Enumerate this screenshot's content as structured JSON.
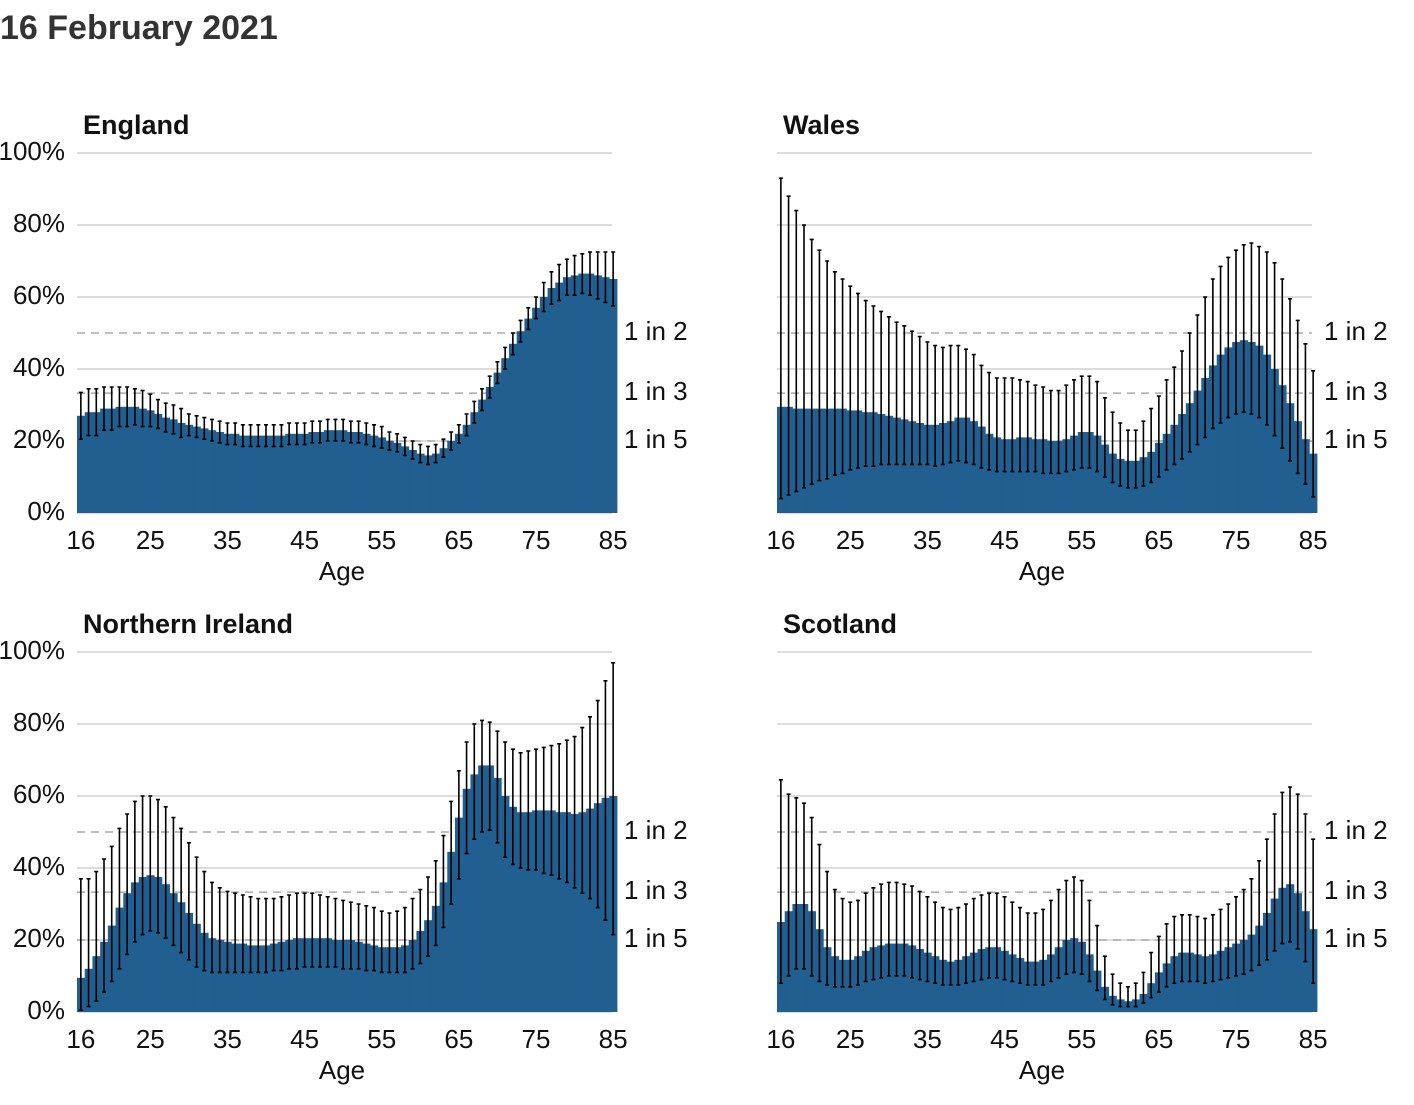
{
  "title": "16 February 2021",
  "chart_data": [
    {
      "type": "bar",
      "title": "England",
      "xlabel": "Age",
      "color": "#215f91",
      "error_color": "#000000",
      "x": [
        16,
        17,
        18,
        19,
        20,
        21,
        22,
        23,
        24,
        25,
        26,
        27,
        28,
        29,
        30,
        31,
        32,
        33,
        34,
        35,
        36,
        37,
        38,
        39,
        40,
        41,
        42,
        43,
        44,
        45,
        46,
        47,
        48,
        49,
        50,
        51,
        52,
        53,
        54,
        55,
        56,
        57,
        58,
        59,
        60,
        61,
        62,
        63,
        64,
        65,
        66,
        67,
        68,
        69,
        70,
        71,
        72,
        73,
        74,
        75,
        76,
        77,
        78,
        79,
        80,
        81,
        82,
        83,
        84,
        85
      ],
      "values": [
        27,
        28,
        28,
        29,
        29,
        29.5,
        29.5,
        29.5,
        29,
        28.5,
        27.5,
        26.5,
        26,
        25,
        24.5,
        24,
        23.5,
        23,
        22.5,
        22,
        22,
        21.5,
        21.5,
        21.5,
        21.5,
        21.5,
        21.5,
        22,
        22,
        22,
        22.5,
        22.5,
        23,
        23,
        23,
        22.5,
        22.5,
        22,
        21.5,
        21,
        20,
        19.5,
        18.5,
        17.5,
        16.5,
        16,
        16.5,
        18,
        20,
        22,
        24.5,
        28,
        31.5,
        35,
        39,
        43,
        47,
        50.5,
        54,
        57,
        60,
        62.5,
        64,
        65.5,
        66,
        66.5,
        66.5,
        66,
        65.5,
        65
      ],
      "lower": [
        20.5,
        21.5,
        21.5,
        23,
        23,
        24,
        24,
        24.5,
        24,
        24,
        23.5,
        22.5,
        22,
        21,
        21.5,
        21,
        20.5,
        20,
        19.5,
        19,
        19,
        18.5,
        18.5,
        18.5,
        18.5,
        18.5,
        18.5,
        19,
        19,
        19,
        19.5,
        19.5,
        20,
        20,
        20,
        19.5,
        19.5,
        19,
        18.5,
        18,
        17.5,
        17,
        16,
        15,
        14,
        13.5,
        14,
        15.5,
        17.5,
        19.5,
        21.5,
        25,
        28.5,
        32,
        36,
        40,
        44,
        47.5,
        51,
        54,
        56,
        58,
        59,
        60.5,
        60.5,
        61,
        60.5,
        59.5,
        58.5,
        57.5
      ],
      "upper": [
        33.5,
        34.5,
        34.5,
        35,
        35,
        35,
        35,
        34.5,
        34,
        33,
        31.5,
        30.5,
        30,
        29,
        27.5,
        27,
        26.5,
        26,
        25.5,
        25,
        25,
        24.5,
        24.5,
        24.5,
        24.5,
        24.5,
        24.5,
        25,
        25,
        25,
        25.5,
        25.5,
        26,
        26,
        26,
        25.5,
        25.5,
        25,
        24.5,
        24,
        22.5,
        22,
        21,
        20,
        19,
        18.5,
        19,
        20.5,
        22.5,
        24.5,
        27.5,
        31,
        34.5,
        38,
        42,
        46,
        50,
        53.5,
        57,
        60,
        64,
        67,
        69,
        70.5,
        71.5,
        72,
        72.5,
        72.5,
        72.5,
        72.5
      ],
      "xlim": [
        15.5,
        85.5
      ],
      "xticks": [
        16,
        25,
        35,
        45,
        55,
        65,
        75,
        85
      ],
      "ylim": [
        0,
        100
      ],
      "yticks": [
        {
          "value": 0,
          "label": "0%"
        },
        {
          "value": 20,
          "label": "20%"
        },
        {
          "value": 40,
          "label": "40%"
        },
        {
          "value": 60,
          "label": "60%"
        },
        {
          "value": 80,
          "label": "80%"
        },
        {
          "value": 100,
          "label": "100%"
        }
      ],
      "reference_lines": [
        {
          "value": 50,
          "label": "1 in 2"
        },
        {
          "value": 33.3,
          "label": "1 in 3"
        },
        {
          "value": 20,
          "label": "1 in 5"
        }
      ],
      "grid": true
    },
    {
      "type": "bar",
      "title": "Wales",
      "xlabel": "Age",
      "color": "#215f91",
      "error_color": "#000000",
      "x": [
        16,
        17,
        18,
        19,
        20,
        21,
        22,
        23,
        24,
        25,
        26,
        27,
        28,
        29,
        30,
        31,
        32,
        33,
        34,
        35,
        36,
        37,
        38,
        39,
        40,
        41,
        42,
        43,
        44,
        45,
        46,
        47,
        48,
        49,
        50,
        51,
        52,
        53,
        54,
        55,
        56,
        57,
        58,
        59,
        60,
        61,
        62,
        63,
        64,
        65,
        66,
        67,
        68,
        69,
        70,
        71,
        72,
        73,
        74,
        75,
        76,
        77,
        78,
        79,
        80,
        81,
        82,
        83,
        84,
        85
      ],
      "values": [
        29.5,
        29.5,
        29,
        29,
        29,
        29,
        29,
        29,
        29,
        28.5,
        28.5,
        28,
        28,
        27.5,
        27,
        26.5,
        26,
        25.5,
        25,
        24.5,
        24.5,
        25,
        25.5,
        26.5,
        26.5,
        25.5,
        24,
        22,
        21,
        20.5,
        20.5,
        21,
        21,
        20.5,
        20.5,
        20,
        20,
        20.5,
        21.5,
        22.5,
        22.5,
        21.5,
        19,
        16.5,
        15,
        14.5,
        14.5,
        15.5,
        17,
        19.5,
        22,
        24.5,
        27.5,
        30.5,
        34,
        37.5,
        41,
        44,
        46,
        47.5,
        48,
        47.5,
        46.5,
        44,
        40,
        35.5,
        30.5,
        25.5,
        20.5,
        16.5
      ],
      "lower": [
        4,
        5,
        6,
        7,
        8,
        9,
        9.5,
        10.5,
        11,
        12,
        12.5,
        13,
        13,
        13.5,
        13.5,
        13.5,
        13.5,
        13.5,
        13.5,
        13.5,
        13,
        13.5,
        14,
        14.5,
        14,
        13.5,
        12.5,
        12,
        11.5,
        11.5,
        11.5,
        11.5,
        11.5,
        11.5,
        11,
        11,
        11,
        11.5,
        12,
        12.5,
        12.5,
        11.5,
        10,
        8.5,
        7.5,
        7,
        7,
        7.5,
        8.5,
        10,
        12,
        13.5,
        15,
        17,
        19,
        21,
        23.5,
        25,
        26.5,
        27.5,
        28,
        27.5,
        26.5,
        24.5,
        21.5,
        18,
        14.5,
        11,
        8,
        4.5
      ],
      "upper": [
        93,
        88,
        84,
        80,
        76,
        73,
        70,
        67,
        65,
        63,
        61,
        59,
        57.5,
        56,
        54.5,
        53,
        52,
        50.5,
        49,
        47.5,
        46.5,
        46,
        46.5,
        46.5,
        45.5,
        44,
        41,
        39,
        37.5,
        37.5,
        37.5,
        37,
        36.5,
        35.5,
        35,
        34,
        34,
        35.5,
        37,
        38,
        38,
        36.5,
        32,
        28,
        25,
        23,
        23,
        25.5,
        29,
        32.5,
        37,
        40.5,
        45,
        50,
        55,
        60,
        65,
        68.5,
        71,
        73,
        74.5,
        75,
        74,
        72.5,
        69.5,
        65,
        59.5,
        53.5,
        47,
        39.5
      ],
      "xlim": [
        15.5,
        85.5
      ],
      "xticks": [
        16,
        25,
        35,
        45,
        55,
        65,
        75,
        85
      ],
      "ylim": [
        0,
        100
      ],
      "yticks": [
        0,
        20,
        40,
        60,
        80,
        100
      ],
      "reference_lines": [
        {
          "value": 50,
          "label": "1 in 2"
        },
        {
          "value": 33.3,
          "label": "1 in 3"
        },
        {
          "value": 20,
          "label": "1 in 5"
        }
      ],
      "grid": true
    },
    {
      "type": "bar",
      "title": "Northern Ireland",
      "xlabel": "Age",
      "color": "#215f91",
      "error_color": "#000000",
      "x": [
        16,
        17,
        18,
        19,
        20,
        21,
        22,
        23,
        24,
        25,
        26,
        27,
        28,
        29,
        30,
        31,
        32,
        33,
        34,
        35,
        36,
        37,
        38,
        39,
        40,
        41,
        42,
        43,
        44,
        45,
        46,
        47,
        48,
        49,
        50,
        51,
        52,
        53,
        54,
        55,
        56,
        57,
        58,
        59,
        60,
        61,
        62,
        63,
        64,
        65,
        66,
        67,
        68,
        69,
        70,
        71,
        72,
        73,
        74,
        75,
        76,
        77,
        78,
        79,
        80,
        81,
        82,
        83,
        84,
        85
      ],
      "values": [
        9.5,
        12,
        15.5,
        19.5,
        24,
        29,
        33,
        36,
        37.5,
        38,
        37.5,
        35.5,
        33,
        30.5,
        27.5,
        24.5,
        22,
        20.5,
        20,
        19.5,
        19,
        19,
        18.5,
        18.5,
        18.5,
        19,
        19.5,
        20,
        20.5,
        20.5,
        20.5,
        20.5,
        20.5,
        20,
        20,
        20,
        19.5,
        19,
        18.5,
        18,
        18,
        18,
        18.5,
        20,
        22.5,
        25.5,
        29.5,
        36,
        44.5,
        54,
        62,
        66,
        68.5,
        68.5,
        65,
        60,
        57,
        55.5,
        55.5,
        56,
        56,
        56,
        55.5,
        55.5,
        55,
        55.5,
        56.5,
        58,
        59.5,
        60
      ],
      "lower": [
        0.5,
        1.5,
        3,
        5.5,
        8.5,
        12,
        16,
        19.5,
        21.5,
        22.5,
        22,
        20.5,
        18.5,
        16.5,
        14.5,
        12.5,
        11.5,
        11,
        11,
        11,
        11,
        11,
        11,
        11,
        11,
        11.5,
        11.5,
        12,
        12,
        12.5,
        12.5,
        12.5,
        12.5,
        12.5,
        12,
        12,
        12,
        11.5,
        11.5,
        11,
        11,
        11,
        11,
        12,
        13.5,
        15.5,
        18.5,
        23.5,
        30,
        37,
        44,
        48,
        50,
        50.5,
        47,
        43,
        41,
        40,
        39.5,
        39.5,
        38.5,
        38,
        37,
        36,
        34.5,
        33,
        31.5,
        29,
        25.5,
        21.5
      ],
      "upper": [
        37,
        37,
        39,
        42.5,
        46,
        51,
        55,
        58.5,
        60,
        60,
        59,
        57,
        54,
        51,
        47,
        43,
        39,
        36,
        34.5,
        33.5,
        33,
        32.5,
        32,
        31.5,
        31.5,
        31.5,
        32,
        32.5,
        33,
        33,
        33,
        32.5,
        32,
        31.5,
        31,
        30.5,
        30,
        29.5,
        29,
        28,
        27.5,
        28,
        29,
        31.5,
        34,
        37.5,
        42,
        49,
        58.5,
        67,
        75,
        80,
        81,
        80.5,
        78,
        75,
        73,
        72,
        72.5,
        73,
        73.5,
        74,
        74.5,
        75.5,
        76.5,
        79,
        82,
        86.5,
        92,
        97
      ],
      "xlim": [
        15.5,
        85.5
      ],
      "xticks": [
        16,
        25,
        35,
        45,
        55,
        65,
        75,
        85
      ],
      "ylim": [
        0,
        100
      ],
      "yticks": [
        {
          "value": 0,
          "label": "0%"
        },
        {
          "value": 20,
          "label": "20%"
        },
        {
          "value": 40,
          "label": "40%"
        },
        {
          "value": 60,
          "label": "60%"
        },
        {
          "value": 80,
          "label": "80%"
        },
        {
          "value": 100,
          "label": "100%"
        }
      ],
      "reference_lines": [
        {
          "value": 50,
          "label": "1 in 2"
        },
        {
          "value": 33.3,
          "label": "1 in 3"
        },
        {
          "value": 20,
          "label": "1 in 5"
        }
      ],
      "grid": true
    },
    {
      "type": "bar",
      "title": "Scotland",
      "xlabel": "Age",
      "color": "#215f91",
      "error_color": "#000000",
      "x": [
        16,
        17,
        18,
        19,
        20,
        21,
        22,
        23,
        24,
        25,
        26,
        27,
        28,
        29,
        30,
        31,
        32,
        33,
        34,
        35,
        36,
        37,
        38,
        39,
        40,
        41,
        42,
        43,
        44,
        45,
        46,
        47,
        48,
        49,
        50,
        51,
        52,
        53,
        54,
        55,
        56,
        57,
        58,
        59,
        60,
        61,
        62,
        63,
        64,
        65,
        66,
        67,
        68,
        69,
        70,
        71,
        72,
        73,
        74,
        75,
        76,
        77,
        78,
        79,
        80,
        81,
        82,
        83,
        84,
        85
      ],
      "values": [
        25,
        28,
        30,
        30,
        28,
        23,
        18,
        15.5,
        14.5,
        14.5,
        15.5,
        17,
        18,
        18.5,
        19,
        19,
        19,
        18.5,
        17.5,
        16.5,
        15.5,
        14.5,
        14,
        14.5,
        15.5,
        16.5,
        17.5,
        18,
        18,
        17,
        16,
        15,
        14,
        14,
        14.5,
        16,
        18,
        20,
        20.5,
        19.5,
        16,
        11.5,
        7,
        4.5,
        3.5,
        3,
        3.5,
        5,
        8,
        11,
        13.5,
        15.5,
        16.5,
        16.5,
        16,
        15.5,
        16,
        17,
        18,
        19,
        20,
        21.5,
        24,
        27.5,
        31.5,
        34.5,
        35.5,
        33,
        28,
        23
      ],
      "lower": [
        8,
        10,
        12,
        12,
        10,
        8.5,
        7.5,
        7,
        7,
        7,
        7.5,
        8.5,
        9,
        9.5,
        10,
        10,
        10,
        9.5,
        9,
        8.5,
        8,
        7.5,
        7.5,
        7.5,
        8,
        8.5,
        9,
        9.5,
        9.5,
        9,
        8.5,
        8,
        7.5,
        7.5,
        7.5,
        8.5,
        9.5,
        10.5,
        11,
        10.5,
        8.5,
        6,
        3.5,
        2,
        1.5,
        1.5,
        1.5,
        2.5,
        4,
        5.5,
        7,
        8,
        8.5,
        8.5,
        8.5,
        8,
        8.5,
        9,
        9.5,
        10,
        10.5,
        11.5,
        13,
        14.5,
        17,
        19,
        19.5,
        17.5,
        14,
        8
      ],
      "upper": [
        64.5,
        60.5,
        59.5,
        58,
        54,
        46.5,
        39,
        34,
        31.5,
        30.5,
        31,
        33,
        34.5,
        35.5,
        36,
        36,
        35.5,
        35,
        33.5,
        32,
        30.5,
        29,
        28.5,
        29,
        30,
        31.5,
        32.5,
        33,
        33,
        32,
        30.5,
        29,
        27.5,
        27.5,
        28.5,
        31,
        34,
        36.5,
        37.5,
        36.5,
        31,
        24,
        15.5,
        10.5,
        8,
        7,
        8,
        11,
        16.5,
        21,
        24.5,
        26.5,
        27,
        27,
        26.5,
        26,
        27,
        28.5,
        30,
        32,
        34,
        37,
        42,
        48,
        55,
        61,
        62.5,
        60.5,
        55,
        48
      ],
      "xlim": [
        15.5,
        85.5
      ],
      "xticks": [
        16,
        25,
        35,
        45,
        55,
        65,
        75,
        85
      ],
      "ylim": [
        0,
        100
      ],
      "yticks": [
        0,
        20,
        40,
        60,
        80,
        100
      ],
      "reference_lines": [
        {
          "value": 50,
          "label": "1 in 2"
        },
        {
          "value": 33.3,
          "label": "1 in 3"
        },
        {
          "value": 20,
          "label": "1 in 5"
        }
      ],
      "grid": true
    }
  ]
}
